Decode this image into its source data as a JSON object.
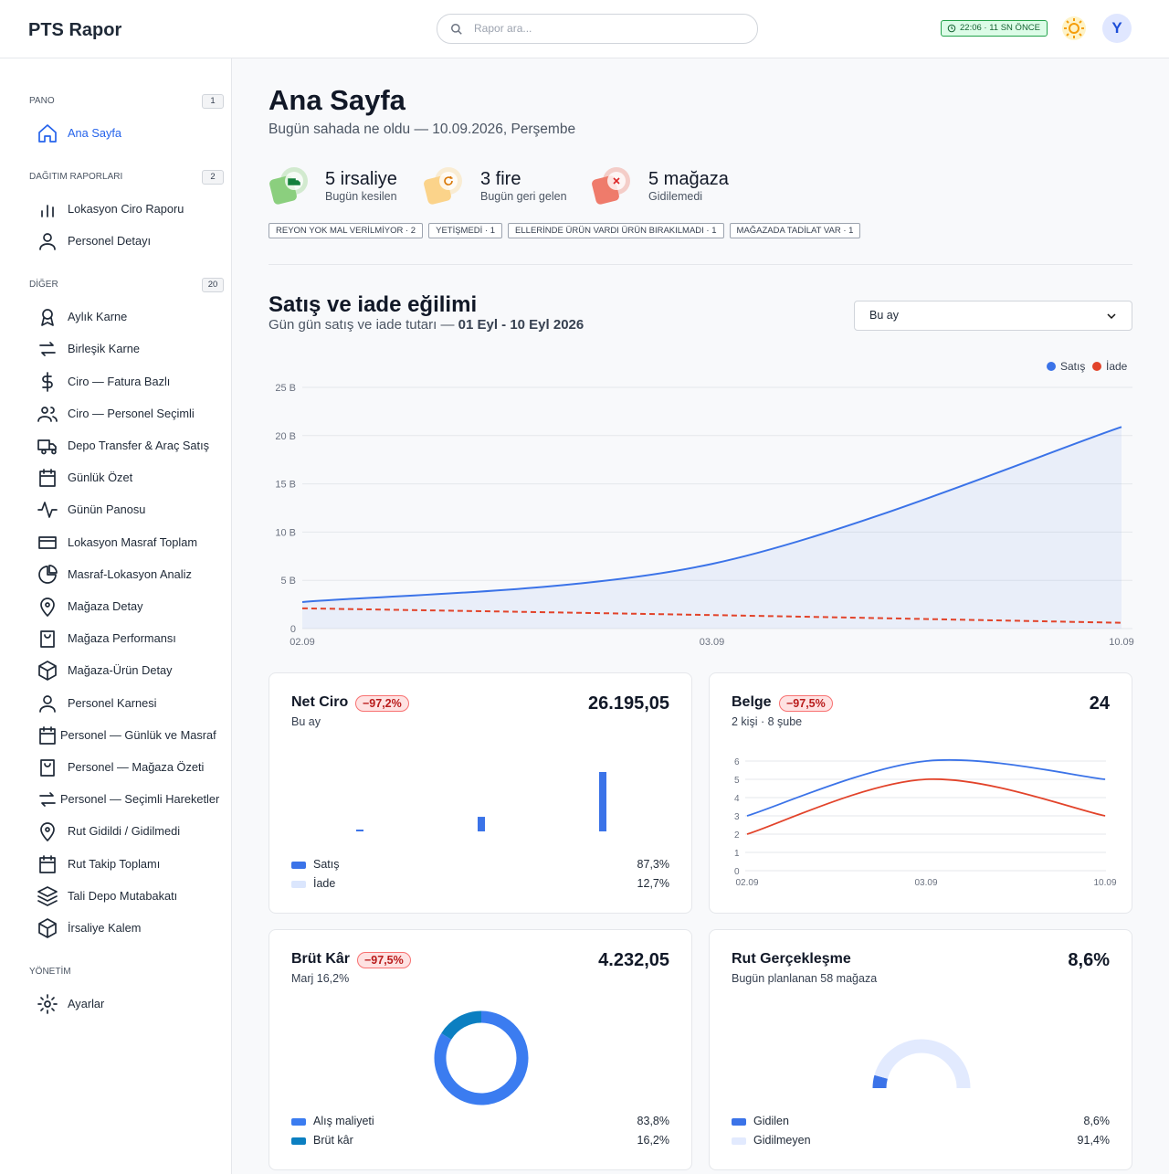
{
  "header": {
    "brand": "PTS Rapor",
    "search_placeholder": "Rapor ara...",
    "status": "22:06 · 11 SN ÖNCE",
    "avatar": "Y"
  },
  "sidebar": [
    {
      "title": "PANO",
      "count": 1,
      "items": [
        "Ana Sayfa"
      ]
    },
    {
      "title": "DAĞITIM RAPORLARI",
      "count": 2,
      "items": [
        "Lokasyon Ciro Raporu",
        "Personel Detayı"
      ]
    },
    {
      "title": "DİĞER",
      "count": 20,
      "items": [
        "Aylık Karne",
        "Birleşik Karne",
        "Ciro — Fatura Bazlı",
        "Ciro — Personel Seçimli",
        "Depo Transfer & Araç Satış",
        "Günlük Özet",
        "Günün Panosu",
        "Lokasyon Masraf Toplam",
        "Masraf-Lokasyon Analiz",
        "Mağaza Detay",
        "Mağaza Performansı",
        "Mağaza-Ürün Detay",
        "Personel Karnesi",
        "Personel — Günlük ve Masraf",
        "Personel — Mağaza Özeti",
        "Personel — Seçimli Hareketler",
        "Rut Gidildi / Gidilmedi",
        "Rut Takip Toplamı",
        "Tali Depo Mutabakatı",
        "İrsaliye Kalem"
      ]
    },
    {
      "title": "YÖNETİM",
      "items": [
        "Ayarlar"
      ]
    }
  ],
  "page": {
    "title": "Ana Sayfa",
    "subtitle": "Bugün sahada ne oldu — 10.09.2026, Perşembe"
  },
  "stats": [
    {
      "value": "5 irsaliye",
      "label": "Bugün kesilen",
      "color": "#8bcf7e"
    },
    {
      "value": "3 fire",
      "label": "Bugün geri gelen",
      "color": "#fbd38a"
    },
    {
      "value": "5 mağaza",
      "label": "Gidilemedi",
      "color": "#ef7b6b"
    }
  ],
  "tags": [
    "REYON YOK MAL VERİLMİYOR · 2",
    "YETİŞMEDİ · 1",
    "ELLERİNDE ÜRÜN VARDI ÜRÜN BIRAKILMADI · 1",
    "MAĞAZADA TADİLAT VAR · 1"
  ],
  "trend": {
    "title": "Satış ve iade eğilimi",
    "subtitle": "Gün gün satış ve iade tutarı —",
    "range": "01 Eyl - 10 Eyl 2026",
    "period": "Bu ay",
    "type": "line",
    "x": [
      "02.09",
      "03.09",
      "10.09"
    ],
    "series": [
      {
        "name": "Satış",
        "color": "#3b73e8",
        "values": [
          2.75,
          6.7,
          20.9
        ],
        "area": true
      },
      {
        "name": "İade",
        "color": "#e2432a",
        "values": [
          2.1,
          1.4,
          0.6
        ],
        "dashed": true
      }
    ],
    "ylim": [
      0,
      25
    ],
    "yticks": [
      0,
      {
        "value": 5,
        "label": "5 B"
      },
      {
        "value": 10,
        "label": "10 B"
      },
      {
        "value": 15,
        "label": "15 B"
      },
      {
        "value": 20,
        "label": "20 B"
      },
      {
        "value": 25,
        "label": "25 B"
      }
    ],
    "grid": true
  },
  "cards": {
    "net_ciro": {
      "title": "Net Ciro",
      "change": "−97,2%",
      "value": "26.195,05",
      "subtitle": "Bu ay",
      "type": "bar",
      "bars": [
        0.5,
        4,
        16.3
      ],
      "bar_color": "#3b73e8",
      "categories": [
        "Satış",
        "İade"
      ],
      "colors": [
        "#3b73e8",
        "#dbe6fd"
      ],
      "values": [
        87.3,
        12.7
      ],
      "value_labels": [
        "87,3%",
        "12,7%"
      ]
    },
    "belge": {
      "title": "Belge",
      "change": "−97,5%",
      "value": "24",
      "subtitle": "2 kişi · 8 şube",
      "type": "line",
      "x": [
        "02.09",
        "03.09",
        "10.09"
      ],
      "series": [
        {
          "color": "#3b73e8",
          "values": [
            3,
            6,
            5
          ]
        },
        {
          "color": "#e2432a",
          "values": [
            2,
            5,
            3
          ]
        }
      ],
      "ylim": [
        0,
        6
      ],
      "yticks": [
        0,
        1,
        2,
        3,
        4,
        5,
        6
      ],
      "grid": true
    },
    "brut_kar": {
      "title": "Brüt Kâr",
      "change": "−97,5%",
      "value": "4.232,05",
      "subtitle": "Marj 16,2%",
      "type": "donut",
      "categories": [
        "Alış maliyeti",
        "Brüt kâr"
      ],
      "colors": [
        "#3b7cf0",
        "#0b7fc1"
      ],
      "values": [
        83.8,
        16.2
      ],
      "value_labels": [
        "83,8%",
        "16,2%"
      ]
    },
    "rut": {
      "title": "Rut Gerçekleşme",
      "value": "8,6%",
      "subtitle": "Bugün planlanan 58 mağaza",
      "type": "gauge",
      "categories": [
        "Gidilen",
        "Gidilmeyen"
      ],
      "colors": [
        "#3b73e8",
        "#e2eafe"
      ],
      "values": [
        8.6,
        91.4
      ],
      "value_labels": [
        "8,6%",
        "91,4%"
      ]
    }
  }
}
